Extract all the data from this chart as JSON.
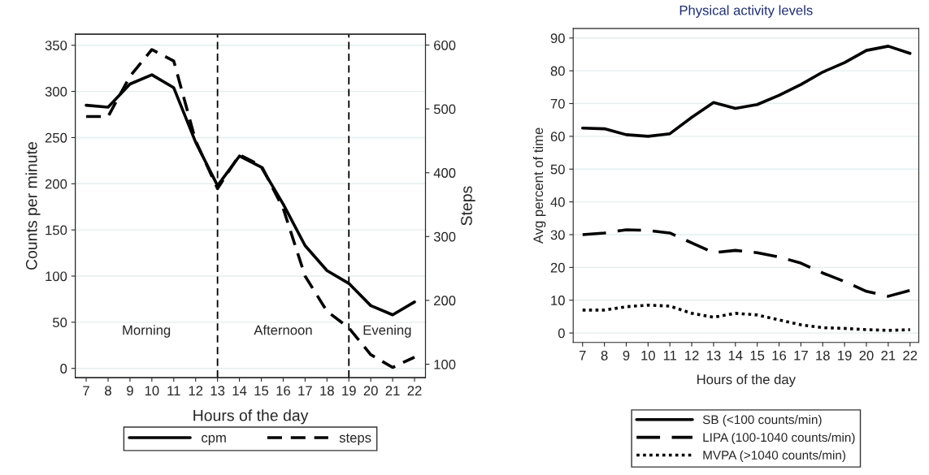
{
  "chart_data": [
    {
      "type": "line",
      "x": [
        7,
        8,
        9,
        10,
        11,
        12,
        13,
        14,
        15,
        16,
        17,
        18,
        19,
        20,
        21,
        22
      ],
      "xlabel": "Hours of the day",
      "ylabel": "Counts per minute",
      "y2label": "Steps",
      "series": [
        {
          "name": "cpm",
          "color": "#000000",
          "line_style": "solid",
          "values": [
            285,
            283,
            308,
            318,
            304,
            245,
            198,
            230,
            218,
            178,
            133,
            106,
            92,
            68,
            58,
            72
          ]
        },
        {
          "name": "steps",
          "color": "#000000",
          "line_style": "dashed",
          "axis": "y2",
          "values": [
            488,
            488,
            551,
            593,
            575,
            450,
            375,
            428,
            411,
            344,
            238,
            183,
            157,
            115,
            95,
            111
          ]
        }
      ],
      "xlim": [
        6.5,
        22.5
      ],
      "xticks": [
        7,
        8,
        9,
        10,
        11,
        12,
        13,
        14,
        15,
        16,
        17,
        18,
        19,
        20,
        21,
        22
      ],
      "ylim": [
        -10,
        362
      ],
      "yticks": [
        0,
        50,
        100,
        150,
        200,
        250,
        300,
        350
      ],
      "y2lim": [
        79,
        617
      ],
      "y2ticks": [
        100,
        200,
        300,
        400,
        500,
        600
      ],
      "ref_lines": [
        {
          "axis": "x",
          "value": 13,
          "color": "#000000",
          "line_style": "dashed"
        },
        {
          "axis": "x",
          "value": 19,
          "color": "#000000",
          "line_style": "dashed"
        }
      ],
      "annotations": [
        "Morning",
        "Afternoon",
        "Evening"
      ],
      "grid": "y",
      "legend": "bottom"
    },
    {
      "type": "line",
      "title": "Physical activity levels",
      "x": [
        7,
        8,
        9,
        10,
        11,
        12,
        13,
        14,
        15,
        16,
        17,
        18,
        19,
        20,
        21,
        22
      ],
      "xlabel": "Hours of the day",
      "ylabel": "Avg percent of time",
      "series": [
        {
          "name": "SB (<100 counts/min)",
          "color": "#000000",
          "line_style": "solid",
          "values": [
            62.5,
            62.3,
            60.5,
            60,
            60.8,
            65.8,
            70.3,
            68.5,
            69.7,
            72.5,
            75.8,
            79.6,
            82.5,
            86.2,
            87.5,
            85.3
          ]
        },
        {
          "name": "LIPA (100-1040 counts/min)",
          "color": "#000000",
          "line_style": "dashed",
          "values": [
            30,
            30.5,
            31.5,
            31.3,
            30.5,
            27.5,
            24.5,
            25.2,
            24.5,
            23.2,
            21.3,
            18.3,
            15.7,
            12.7,
            11.2,
            13
          ]
        },
        {
          "name": "MVPA (>1040 counts/min)",
          "color": "#000000",
          "line_style": "dotted",
          "values": [
            7,
            7,
            8,
            8.5,
            8.2,
            6,
            4.8,
            6,
            5.5,
            4,
            2.5,
            1.6,
            1.4,
            1,
            0.8,
            1
          ]
        }
      ],
      "xlim": [
        6.57,
        22.4
      ],
      "xticks": [
        7,
        8,
        9,
        10,
        11,
        12,
        13,
        14,
        15,
        16,
        17,
        18,
        19,
        20,
        21,
        22
      ],
      "ylim": [
        -2.9,
        92.9
      ],
      "yticks": [
        0,
        10,
        20,
        30,
        40,
        50,
        60,
        70,
        80,
        90
      ],
      "grid": "y",
      "legend": "bottom"
    }
  ]
}
